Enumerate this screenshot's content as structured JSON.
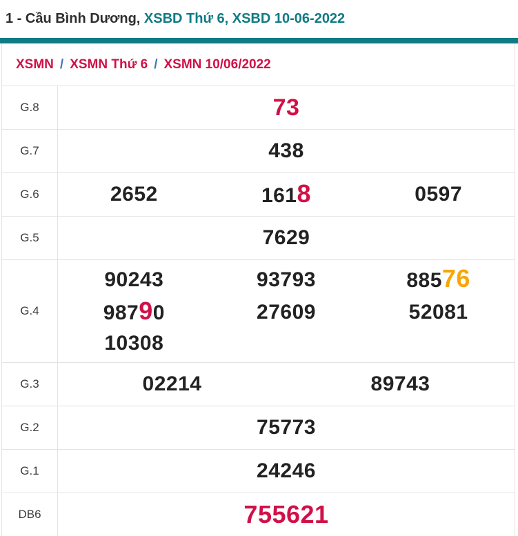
{
  "colors": {
    "teal": "#0f7b83",
    "red": "#d01148",
    "orange": "#f7a609",
    "separator_blue": "#4076b4"
  },
  "title": {
    "prefix": "1 - Cầu Bình Dương, ",
    "links": "XSBD Thứ 6, XSBD 10-06-2022"
  },
  "breadcrumb": {
    "separator": "/",
    "items": [
      "XSMN",
      "XSMN Thứ 6",
      "XSMN 10/06/2022"
    ]
  },
  "results": {
    "rows": [
      {
        "id": "g8",
        "label": "G.8",
        "per_row": 1,
        "values": [
          {
            "size": "large",
            "segments": [
              {
                "text": "73",
                "color": "red"
              }
            ]
          }
        ]
      },
      {
        "id": "g7",
        "label": "G.7",
        "per_row": 1,
        "values": [
          {
            "segments": [
              {
                "text": "438"
              }
            ]
          }
        ]
      },
      {
        "id": "g6",
        "label": "G.6",
        "per_row": 3,
        "values": [
          {
            "segments": [
              {
                "text": "2652"
              }
            ]
          },
          {
            "segments": [
              {
                "text": "161"
              },
              {
                "text": "8",
                "color": "red",
                "big": true
              }
            ]
          },
          {
            "segments": [
              {
                "text": "0597"
              }
            ]
          }
        ]
      },
      {
        "id": "g5",
        "label": "G.5",
        "per_row": 1,
        "values": [
          {
            "segments": [
              {
                "text": "7629"
              }
            ]
          }
        ]
      },
      {
        "id": "g4",
        "label": "G.4",
        "per_row": 3,
        "tall": true,
        "values": [
          {
            "segments": [
              {
                "text": "90243"
              }
            ]
          },
          {
            "segments": [
              {
                "text": "93793"
              }
            ]
          },
          {
            "segments": [
              {
                "text": "885"
              },
              {
                "text": "76",
                "color": "orange",
                "big": true
              }
            ]
          },
          {
            "segments": [
              {
                "text": "987"
              },
              {
                "text": "9",
                "color": "red",
                "big": true
              },
              {
                "text": "0"
              }
            ]
          },
          {
            "segments": [
              {
                "text": "27609"
              }
            ]
          },
          {
            "segments": [
              {
                "text": "52081"
              }
            ]
          },
          {
            "segments": [
              {
                "text": "10308"
              }
            ]
          }
        ]
      },
      {
        "id": "g3",
        "label": "G.3",
        "per_row": 2,
        "values": [
          {
            "segments": [
              {
                "text": "02214"
              }
            ]
          },
          {
            "segments": [
              {
                "text": "89743"
              }
            ]
          }
        ]
      },
      {
        "id": "g2",
        "label": "G.2",
        "per_row": 1,
        "values": [
          {
            "segments": [
              {
                "text": "75773"
              }
            ]
          }
        ]
      },
      {
        "id": "g1",
        "label": "G.1",
        "per_row": 1,
        "values": [
          {
            "segments": [
              {
                "text": "24246"
              }
            ]
          }
        ]
      },
      {
        "id": "db6",
        "label": "DB6",
        "per_row": 1,
        "values": [
          {
            "size": "xlarge",
            "segments": [
              {
                "text": "755621",
                "color": "red"
              }
            ]
          }
        ]
      }
    ]
  }
}
